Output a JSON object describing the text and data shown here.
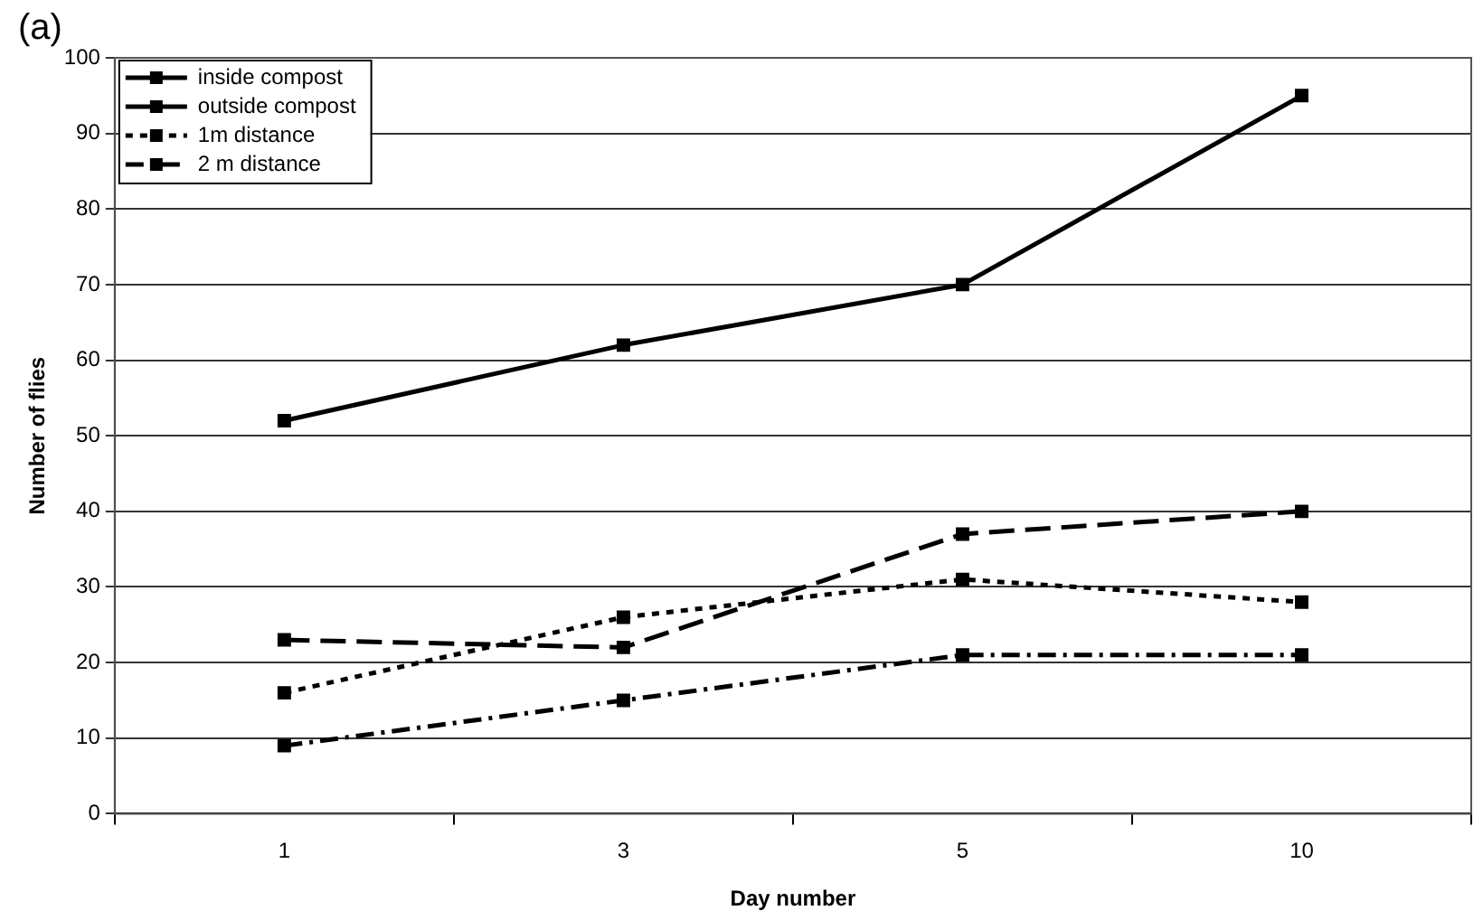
{
  "chart_data": {
    "type": "line",
    "title": "(a)",
    "xlabel": "Day number",
    "ylabel": "Number of flies",
    "categories": [
      "1",
      "3",
      "5",
      "10"
    ],
    "series": [
      {
        "name": "inside compost",
        "color": "#000000",
        "values": [
          52,
          62,
          70,
          95
        ],
        "line_style": "solid"
      },
      {
        "name": "outside compost",
        "color": "#000000",
        "values": [
          23,
          22,
          37,
          40
        ],
        "line_style": "dashed"
      },
      {
        "name": "1m distance",
        "color": "#000000",
        "values": [
          16,
          26,
          31,
          28
        ],
        "line_style": "dotted"
      },
      {
        "name": "2 m distance",
        "color": "#000000",
        "values": [
          9,
          15,
          21,
          21
        ],
        "line_style": "dashdot"
      }
    ],
    "ylim": [
      0,
      100
    ],
    "yticks": [
      0,
      10,
      20,
      30,
      40,
      50,
      60,
      70,
      80,
      90,
      100
    ],
    "grid": "y",
    "legend": "top left",
    "marker": "square"
  }
}
